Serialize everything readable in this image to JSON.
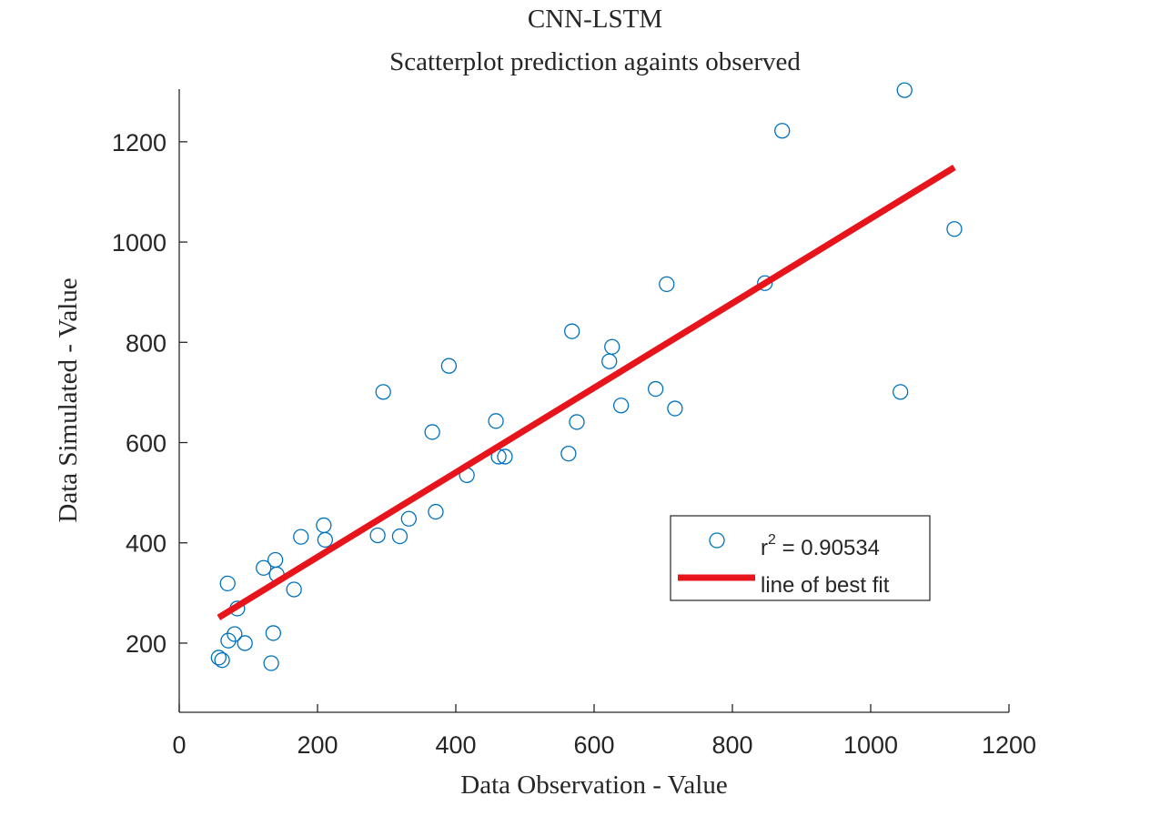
{
  "chart_data": {
    "type": "scatter",
    "title": "CNN-LSTM",
    "subtitle": "Scatterplot prediction againts observed",
    "xlabel": "Data Observation - Value",
    "ylabel": "Data Simulated - Value",
    "xlim": [
      0,
      1200
    ],
    "ylim": [
      62,
      1305
    ],
    "xticks": [
      0,
      200,
      400,
      600,
      800,
      1000,
      1200
    ],
    "yticks": [
      200,
      400,
      600,
      800,
      1000,
      1200
    ],
    "grid": false,
    "legend_position": "lower-right",
    "colors": {
      "points": "#0072BD",
      "fit_line": "#E8141B"
    },
    "series": [
      {
        "name": "r² = 0.90534",
        "legend_label": "r",
        "legend_sup": "2",
        "legend_value": " = 0.90534",
        "type": "scatter",
        "x": [
          57,
          62,
          70,
          71,
          80,
          84,
          95,
          122,
          133,
          136,
          139,
          141,
          166,
          176,
          209,
          211,
          287,
          295,
          319,
          332,
          366,
          371,
          390,
          416,
          458,
          462,
          471,
          563,
          568,
          575,
          622,
          626,
          639,
          689,
          705,
          717,
          847,
          872,
          1043,
          1049,
          1121
        ],
        "y": [
          171,
          166,
          319,
          205,
          218,
          269,
          200,
          350,
          160,
          220,
          366,
          337,
          307,
          412,
          435,
          406,
          415,
          701,
          413,
          448,
          621,
          462,
          753,
          535,
          643,
          572,
          572,
          578,
          822,
          641,
          762,
          791,
          674,
          707,
          916,
          668,
          918,
          1222,
          701,
          1303,
          1026
        ]
      },
      {
        "name": "line of best fit",
        "type": "line",
        "x": [
          57,
          1121
        ],
        "y": [
          251,
          1149
        ]
      }
    ]
  }
}
